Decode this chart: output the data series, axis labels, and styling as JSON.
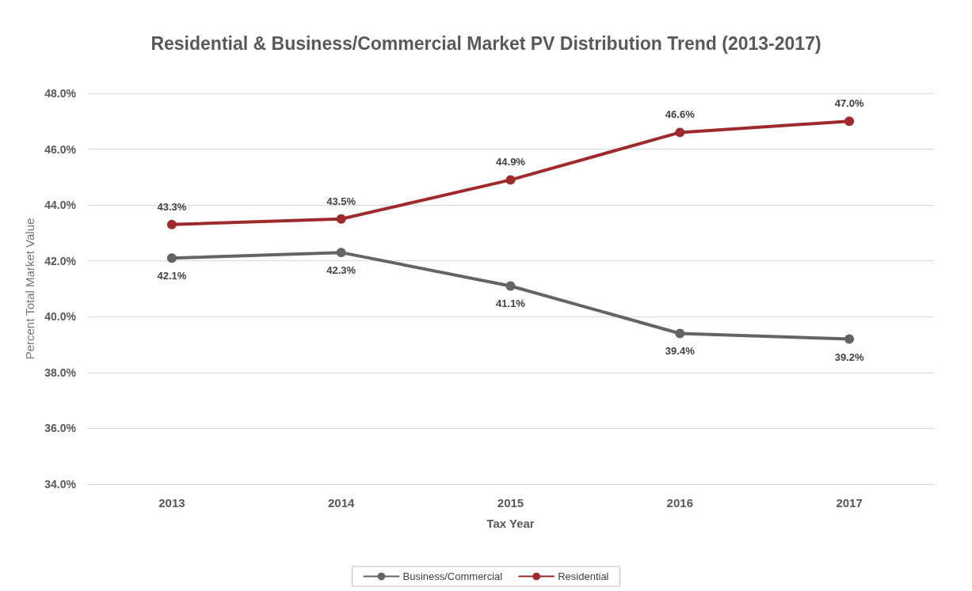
{
  "chart_data": {
    "type": "line",
    "title": "Residential & Business/Commercial Market PV Distribution Trend (2013-2017)",
    "xlabel": "Tax Year",
    "ylabel": "Percent Total Market Value",
    "categories": [
      "2013",
      "2014",
      "2015",
      "2016",
      "2017"
    ],
    "series": [
      {
        "name": "Business/Commercial",
        "color": "#636466",
        "values": [
          42.1,
          42.3,
          41.1,
          39.4,
          39.2
        ],
        "value_labels": [
          "42.1%",
          "42.3%",
          "41.1%",
          "39.4%",
          "39.2%"
        ]
      },
      {
        "name": "Residential",
        "color": "#9e2a2b",
        "values": [
          43.3,
          43.5,
          44.9,
          46.6,
          47.0
        ],
        "value_labels": [
          "43.3%",
          "43.5%",
          "44.9%",
          "46.6%",
          "47.0%"
        ]
      }
    ],
    "ylim": [
      34,
      48
    ],
    "yticks": [
      {
        "value": 34,
        "label": "34.0%"
      },
      {
        "value": 36,
        "label": "36.0%"
      },
      {
        "value": 38,
        "label": "38.0%"
      },
      {
        "value": 40,
        "label": "40.0%"
      },
      {
        "value": 42,
        "label": "42.0%"
      },
      {
        "value": 44,
        "label": "44.0%"
      },
      {
        "value": 46,
        "label": "46.0%"
      },
      {
        "value": 48,
        "label": "48.0%"
      }
    ],
    "grid": "y",
    "legend": "bottom",
    "marker": "circle",
    "line_style": "solid"
  }
}
